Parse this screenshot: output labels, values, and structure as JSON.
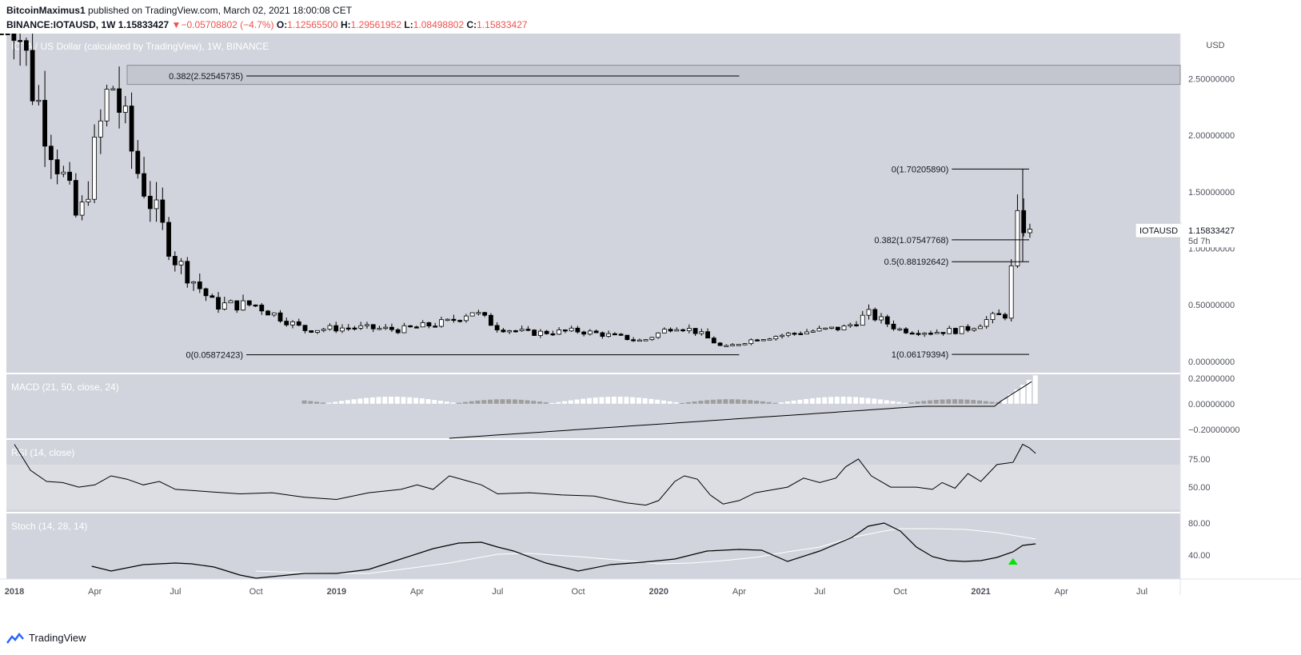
{
  "header": {
    "line1_author": "BitcoinMaximus1",
    "line1_rest": "published on TradingView.com, March 02, 2021 18:00:08 CET",
    "symbol": "BINANCE:IOTAUSD, 1W",
    "last": "1.15833427",
    "change": "−0.05708802 (−4.7%)",
    "o_label": "O:",
    "o_value": "1.12565500",
    "h_label": "H:",
    "h_value": "1.29561952",
    "l_label": "L:",
    "l_value": "1.08498802",
    "c_label": "C:",
    "c_value": "1.15833427"
  },
  "footer": {
    "brand": "TradingView"
  },
  "colors": {
    "bg": "#d1d4dc",
    "rsi_band": "#dcdee4",
    "up": "#ffffff",
    "down": "#000000",
    "macd_pos": "#ffffff",
    "macd_neg": "#9e9e9e",
    "arrow": "#00e600"
  },
  "chart_data": [
    {
      "type": "candlestick",
      "title": "IOTA / US Dollar (calculated by TradingView), 1W, BINANCE",
      "currency_label": "USD",
      "y_ticks": [
        "0.00000000",
        "0.50000000",
        "1.00000000",
        "1.50000000",
        "2.00000000",
        "2.50000000"
      ],
      "y_tick_values": [
        0,
        0.5,
        1.0,
        1.5,
        2.0,
        2.5
      ],
      "ylim": [
        -0.1,
        2.9
      ],
      "x_ticks": [
        "2018",
        "Apr",
        "Jul",
        "Oct",
        "2019",
        "Apr",
        "Jul",
        "Oct",
        "2020",
        "Apr",
        "Jul",
        "Oct",
        "2021",
        "Apr",
        "Jul"
      ],
      "x_tick_years": [
        2018.0,
        2018.25,
        2018.5,
        2018.75,
        2019.0,
        2019.25,
        2019.5,
        2019.75,
        2020.0,
        2020.25,
        2020.5,
        2020.75,
        2021.0,
        2021.25,
        2021.5
      ],
      "price_badge": {
        "label": "IOTAUSD",
        "value": "1.15833427",
        "countdown": "5d 7h"
      },
      "resistance_zone": {
        "from": 2.45,
        "to": 2.62,
        "start": 2018.35
      },
      "fib_levels": [
        {
          "label": "0.382(2.52545735)",
          "value": 2.525,
          "from": 2018.72,
          "to": 2020.25
        },
        {
          "label": "0(0.05872423)",
          "value": 0.0587,
          "from": 2018.72,
          "to": 2020.25
        },
        {
          "label": "0(1.70205890)",
          "value": 1.702,
          "from": 2020.91,
          "to": 2021.15
        },
        {
          "label": "0.382(1.07547768)",
          "value": 1.0755,
          "from": 2020.91,
          "to": 2021.15
        },
        {
          "label": "0.5(0.88192642)",
          "value": 0.8819,
          "from": 2020.91,
          "to": 2021.15
        },
        {
          "label": "1(0.06179394)",
          "value": 0.0618,
          "from": 2020.91,
          "to": 2021.15
        }
      ],
      "series_anchor_dates": [
        2017.96,
        2018.05,
        2018.2,
        2018.3,
        2018.38,
        2018.5,
        2018.62,
        2018.75,
        2018.9,
        2019.05,
        2019.2,
        2019.35,
        2019.42,
        2019.5,
        2019.6,
        2019.75,
        2019.85,
        2019.95,
        2020.05,
        2020.12,
        2020.2,
        2020.3,
        2020.45,
        2020.58,
        2020.65,
        2020.75,
        2020.85,
        2020.95,
        2021.03,
        2021.08,
        2021.11,
        2021.13,
        2021.15,
        2021.17
      ],
      "series_anchor_closes": [
        3.6,
        2.5,
        1.2,
        2.5,
        1.7,
        0.9,
        0.5,
        0.5,
        0.28,
        0.3,
        0.28,
        0.35,
        0.45,
        0.3,
        0.25,
        0.27,
        0.23,
        0.18,
        0.32,
        0.26,
        0.12,
        0.2,
        0.26,
        0.3,
        0.42,
        0.28,
        0.26,
        0.28,
        0.38,
        0.42,
        1.2,
        1.25,
        1.09,
        1.158
      ]
    },
    {
      "type": "bar+line",
      "title": "MACD (21, 50, close, 24)",
      "y_ticks": [
        "0.20000000",
        "0.00000000",
        "−0.20000000"
      ],
      "y_tick_values": [
        0.2,
        0,
        -0.2
      ],
      "ylim": [
        -0.27,
        0.23
      ],
      "hist_start": 2018.9,
      "hist_end": 2021.17
    },
    {
      "type": "line",
      "title": "RSI (14, close)",
      "y_ticks": [
        "75.00",
        "50.00"
      ],
      "y_tick_values": [
        75,
        50
      ],
      "ylim": [
        28,
        92
      ],
      "band": [
        30,
        70
      ],
      "x": [
        2018.0,
        2018.05,
        2018.1,
        2018.15,
        2018.2,
        2018.25,
        2018.3,
        2018.35,
        2018.4,
        2018.45,
        2018.5,
        2018.55,
        2018.6,
        2018.7,
        2018.8,
        2018.9,
        2019.0,
        2019.1,
        2019.2,
        2019.25,
        2019.3,
        2019.35,
        2019.4,
        2019.45,
        2019.5,
        2019.6,
        2019.7,
        2019.8,
        2019.9,
        2019.96,
        2020.0,
        2020.05,
        2020.08,
        2020.12,
        2020.16,
        2020.2,
        2020.25,
        2020.3,
        2020.4,
        2020.45,
        2020.5,
        2020.55,
        2020.58,
        2020.62,
        2020.66,
        2020.72,
        2020.8,
        2020.85,
        2020.88,
        2020.92,
        2020.96,
        2021.0,
        2021.05,
        2021.1,
        2021.13,
        2021.15,
        2021.17
      ],
      "values": [
        88,
        65,
        55,
        54,
        50,
        52,
        60,
        57,
        52,
        55,
        48,
        47,
        46,
        44,
        45,
        41,
        39,
        45,
        48,
        52,
        48,
        60,
        56,
        52,
        44,
        45,
        43,
        42,
        36,
        34,
        38,
        55,
        60,
        57,
        43,
        35,
        38,
        45,
        50,
        58,
        54,
        58,
        68,
        75,
        60,
        50,
        50,
        48,
        54,
        49,
        62,
        55,
        70,
        72,
        88,
        85,
        80
      ]
    },
    {
      "type": "line",
      "title": "Stoch (14, 28, 14)",
      "y_ticks": [
        "80.00",
        "40.00"
      ],
      "y_tick_values": [
        80,
        40
      ],
      "ylim": [
        10,
        92
      ],
      "k_x": [
        2018.24,
        2018.3,
        2018.4,
        2018.5,
        2018.55,
        2018.62,
        2018.7,
        2018.75,
        2018.9,
        2019.0,
        2019.1,
        2019.2,
        2019.3,
        2019.38,
        2019.45,
        2019.5,
        2019.55,
        2019.65,
        2019.75,
        2019.85,
        2019.95,
        2020.05,
        2020.15,
        2020.25,
        2020.32,
        2020.4,
        2020.5,
        2020.6,
        2020.65,
        2020.7,
        2020.75,
        2020.8,
        2020.85,
        2020.9,
        2020.95,
        2021.0,
        2021.05,
        2021.1,
        2021.13,
        2021.17
      ],
      "k_values": [
        26,
        20,
        28,
        30,
        29,
        25,
        15,
        11,
        17,
        17,
        22,
        35,
        48,
        55,
        56,
        50,
        45,
        30,
        20,
        28,
        31,
        35,
        45,
        47,
        46,
        32,
        45,
        62,
        76,
        80,
        70,
        50,
        38,
        33,
        32,
        33,
        37,
        44,
        52,
        54
      ],
      "d_x": [
        2018.75,
        2018.9,
        2019.0,
        2019.1,
        2019.2,
        2019.35,
        2019.5,
        2019.6,
        2019.75,
        2019.9,
        2020.0,
        2020.1,
        2020.2,
        2020.3,
        2020.4,
        2020.5,
        2020.6,
        2020.7,
        2020.75,
        2020.85,
        2020.95,
        2021.05,
        2021.17
      ],
      "d_values": [
        20,
        18,
        17,
        17,
        22,
        30,
        41,
        42,
        38,
        33,
        29,
        30,
        33,
        37,
        44,
        50,
        62,
        70,
        73,
        73,
        72,
        68,
        60
      ],
      "signal_arrow": {
        "x": 2021.1,
        "value": 32
      }
    }
  ]
}
